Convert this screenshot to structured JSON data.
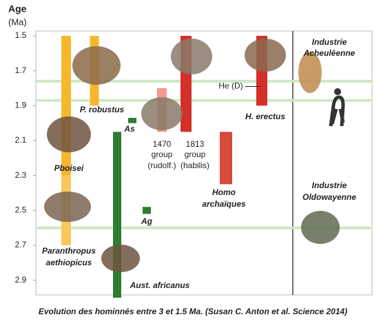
{
  "chart_data": {
    "type": "range",
    "y_label": "Age",
    "y_unit": "(Ma)",
    "ylim": [
      1.5,
      3.0
    ],
    "y_inverted": true,
    "yticks": [
      1.5,
      1.7,
      1.9,
      2.1,
      2.3,
      2.5,
      2.7,
      2.9
    ],
    "reference_lines": {
      "color": "#cfe8c4",
      "values": [
        1.76,
        1.87,
        2.6
      ]
    },
    "ranges": [
      {
        "label": [
          "Pboisei"
        ],
        "color": "#f6b72c",
        "start": 1.5,
        "end": 2.3
      },
      {
        "label": [
          "Paranthropus",
          "aethiopicus"
        ],
        "color": "#f9c75e",
        "start": 2.3,
        "end": 2.7
      },
      {
        "label": [
          "P. robustus"
        ],
        "color": "#f6b72c",
        "start": 1.5,
        "end": 1.9
      },
      {
        "label": [
          "Aust. africanus"
        ],
        "color": "#2e7d32",
        "start": 2.05,
        "end": 3.0
      },
      {
        "label": [
          "As"
        ],
        "color": "#2e7d32",
        "start": 1.97,
        "end": 2.0
      },
      {
        "label": [
          "Ag"
        ],
        "color": "#2e7d32",
        "start": 2.48,
        "end": 2.52
      },
      {
        "label": [
          "1470",
          "group",
          "(rudolf.)"
        ],
        "color": "#f29a8a",
        "start": 1.8,
        "end": 2.05
      },
      {
        "label": [
          "1813",
          "group",
          "(habilis)"
        ],
        "color": "#d3302a",
        "start": 1.5,
        "end": 2.05
      },
      {
        "label": [
          "Homo",
          "archaïques"
        ],
        "color": "#d84a3a",
        "start": 2.05,
        "end": 2.35
      },
      {
        "label": [
          "H. erectus"
        ],
        "color": "#d3302a",
        "start": 1.5,
        "end": 1.9
      }
    ],
    "annotation": {
      "label": "He (D)",
      "value": 1.79
    },
    "industries": [
      [
        "Industrie",
        "Acheuléenne"
      ],
      [
        "Industrie",
        "Oldowayenne"
      ]
    ],
    "caption": "Evolution des hominnés entre 3 et 1.5 Ma. (Susan C. Anton et al. Science 2014)"
  }
}
